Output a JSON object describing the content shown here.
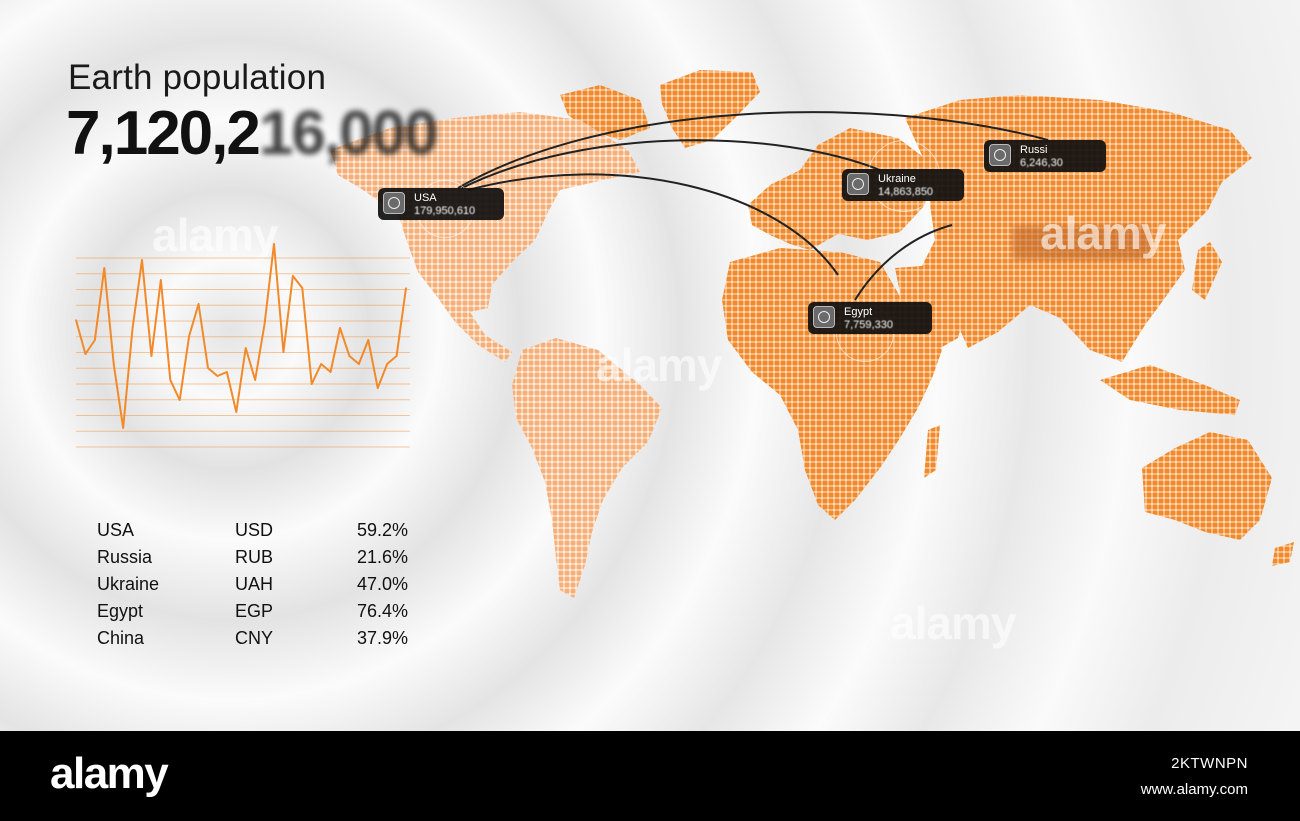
{
  "headline": "Earth population",
  "counter": {
    "clear": "7,120,2",
    "blurred": "16,000"
  },
  "table": [
    {
      "country": "USA",
      "currency": "USD",
      "pct": "59.2%"
    },
    {
      "country": "Russia",
      "currency": "RUB",
      "pct": "21.6%"
    },
    {
      "country": "Ukraine",
      "currency": "UAH",
      "pct": "47.0%"
    },
    {
      "country": "Egypt",
      "currency": "EGP",
      "pct": "76.4%"
    },
    {
      "country": "China",
      "currency": "CNY",
      "pct": "37.9%"
    }
  ],
  "tags": {
    "usa": {
      "name": "USA",
      "value": "179,950,610"
    },
    "ukraine": {
      "name": "Ukraine",
      "value": "14,863,850"
    },
    "russia": {
      "name": "Russi",
      "value": "6,246,30"
    },
    "egypt": {
      "name": "Egypt",
      "value": "7,759,330"
    }
  },
  "chart_data": {
    "type": "line",
    "series_color": "#f08a2a",
    "values": [
      62,
      45,
      52,
      88,
      40,
      8,
      58,
      92,
      44,
      82,
      32,
      22,
      54,
      70,
      38,
      34,
      36,
      16,
      48,
      32,
      60,
      100,
      46,
      84,
      78,
      30,
      40,
      36,
      58,
      44,
      40,
      52,
      28,
      40,
      44,
      78
    ],
    "grid": true,
    "xlabel": "",
    "ylabel": ""
  },
  "watermarks": [
    "alamy",
    "alamy",
    "alamy",
    "alamy"
  ],
  "footer": {
    "brand": "alamy",
    "image_code": "2KTWNPN",
    "site": "www.alamy.com"
  },
  "colors": {
    "map_orange": "#f08a2a",
    "map_light": "#f7b889",
    "tag_bg": "#0f0f0f"
  }
}
